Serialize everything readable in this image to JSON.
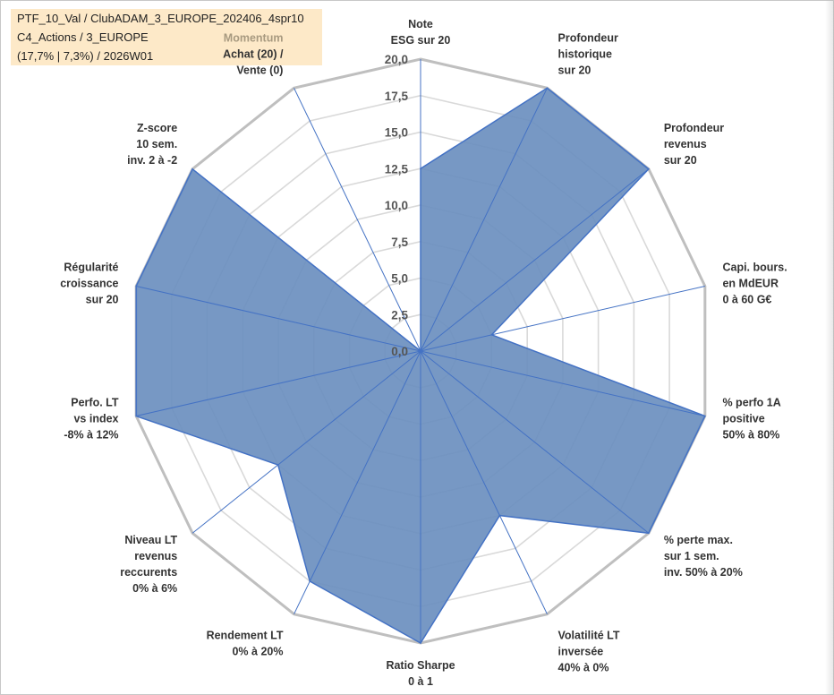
{
  "header": {
    "line1": "PTF_10_Val / ClubADAM_3_EUROPE_202406_4spr10",
    "line2": "C4_Actions / 3_EUROPE",
    "line3": "(17,7% | 7,3%) / 2026W01"
  },
  "chart_data": {
    "type": "radar",
    "range": [
      0,
      20
    ],
    "tick_values": [
      0,
      2.5,
      5,
      7.5,
      10,
      12.5,
      15,
      17.5,
      20
    ],
    "tick_labels": [
      "0,0",
      "2,5",
      "5,0",
      "7,5",
      "10,0",
      "12,5",
      "15,0",
      "17,5",
      "20,0"
    ],
    "fill_color": "#6b8fbf",
    "line_color": "#4472c4",
    "grid_color": "#d9d9d9",
    "outer_ring_color": "#bfbfbf",
    "axes": [
      {
        "lines": [
          "Note",
          "ESG sur 20"
        ],
        "value": 12.5
      },
      {
        "lines": [
          "Profondeur",
          "historique",
          "sur 20"
        ],
        "value": 20
      },
      {
        "lines": [
          "Profondeur",
          "revenus",
          "sur 20"
        ],
        "value": 20
      },
      {
        "lines": [
          "Capi. bours.",
          "en MdEUR",
          "0 à 60 G€"
        ],
        "value": 5
      },
      {
        "lines": [
          "% perfo 1A",
          "positive",
          "50% à 80%"
        ],
        "value": 20
      },
      {
        "lines": [
          "% perte max.",
          "sur 1 sem.",
          "inv. 50% à 20%"
        ],
        "value": 20
      },
      {
        "lines": [
          "Volatilité LT",
          "inversée",
          "40% à 0%"
        ],
        "value": 12.5
      },
      {
        "lines": [
          "Ratio Sharpe",
          "0 à 1"
        ],
        "value": 20
      },
      {
        "lines": [
          "Rendement LT",
          "0% à 20%"
        ],
        "value": 17.5
      },
      {
        "lines": [
          "Niveau LT",
          "revenus",
          "reccurents",
          "0% à 6%"
        ],
        "value": 12.5
      },
      {
        "lines": [
          "Perfo. LT",
          "vs index",
          "-8% à 12%"
        ],
        "value": 20
      },
      {
        "lines": [
          "Régularité",
          "croissance",
          "sur 20"
        ],
        "value": 20
      },
      {
        "lines": [
          "Z-score",
          "10 sem.",
          "inv. 2 à -2"
        ],
        "value": 20
      },
      {
        "lines": [
          "Momentum",
          "Achat (20) /",
          "Vente (0)"
        ],
        "value": 0
      }
    ]
  }
}
